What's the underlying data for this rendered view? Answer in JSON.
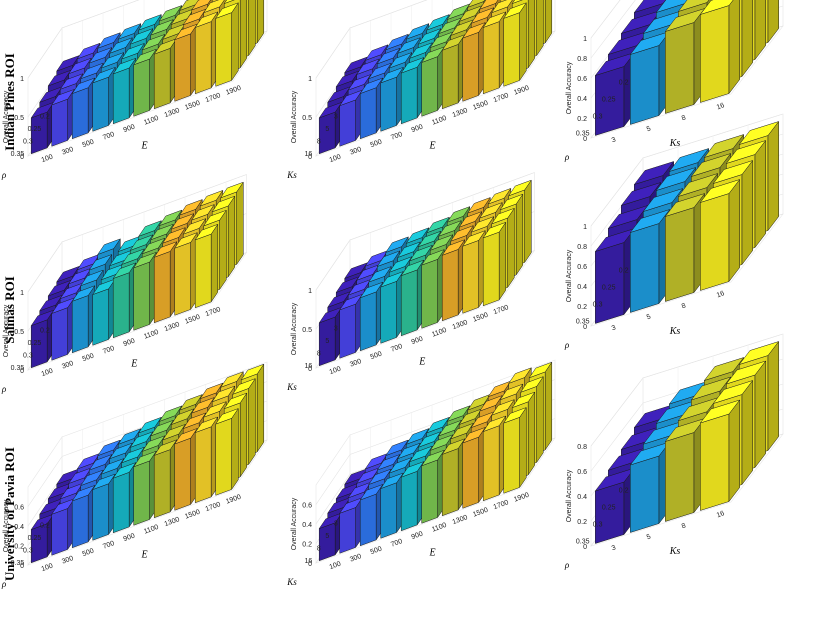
{
  "figure": {
    "rows": [
      "Indian Pines ROI",
      "Salinas ROI",
      "University of Pavia ROI"
    ],
    "zlabel": "Overall Accuracy",
    "palette": [
      "#3a1fae",
      "#4a46f0",
      "#2f78f2",
      "#1e9ee0",
      "#17bccd",
      "#2fc69b",
      "#7cca52",
      "#c3c42a",
      "#f0b02a",
      "#fbd62a",
      "#faf020"
    ]
  },
  "chart_data": [
    {
      "id": "ip-rho-E",
      "type": "bar3d",
      "dataset": "Indian Pines ROI",
      "rows_var": "ρ",
      "rows": [
        "0.2",
        "0.25",
        "0.3",
        "0.35"
      ],
      "cols_var": "E",
      "cols": [
        "100",
        "300",
        "500",
        "700",
        "900",
        "1100",
        "1300",
        "1500",
        "1700",
        "1900"
      ],
      "zlim": [
        0,
        1
      ],
      "zticks": [
        "0",
        "0.5",
        "1"
      ],
      "values": [
        [
          0.58,
          0.64,
          0.68,
          0.7,
          0.72,
          0.74,
          0.78,
          0.88,
          0.94,
          0.95
        ],
        [
          0.55,
          0.61,
          0.65,
          0.68,
          0.7,
          0.72,
          0.76,
          0.85,
          0.91,
          0.93
        ],
        [
          0.5,
          0.57,
          0.61,
          0.65,
          0.67,
          0.69,
          0.73,
          0.82,
          0.88,
          0.9
        ],
        [
          0.46,
          0.53,
          0.58,
          0.62,
          0.64,
          0.66,
          0.7,
          0.79,
          0.85,
          0.87
        ]
      ]
    },
    {
      "id": "ip-ks-E",
      "type": "bar3d",
      "dataset": "Indian Pines ROI",
      "rows_var": "Ks",
      "rows": [
        "3",
        "5",
        "8",
        "16"
      ],
      "cols_var": "E",
      "cols": [
        "100",
        "300",
        "500",
        "700",
        "900",
        "1100",
        "1300",
        "1500",
        "1700",
        "1900"
      ],
      "zlim": [
        0,
        1
      ],
      "zticks": [
        "0",
        "0.5",
        "1"
      ],
      "values": [
        [
          0.56,
          0.62,
          0.66,
          0.7,
          0.72,
          0.76,
          0.82,
          0.88,
          0.92,
          0.94
        ],
        [
          0.54,
          0.6,
          0.64,
          0.68,
          0.7,
          0.74,
          0.8,
          0.86,
          0.9,
          0.92
        ],
        [
          0.5,
          0.56,
          0.61,
          0.65,
          0.68,
          0.72,
          0.78,
          0.84,
          0.88,
          0.9
        ],
        [
          0.46,
          0.52,
          0.58,
          0.62,
          0.65,
          0.69,
          0.75,
          0.81,
          0.85,
          0.87
        ]
      ]
    },
    {
      "id": "ip-rho-ks",
      "type": "bar3d",
      "dataset": "Indian Pines ROI",
      "rows_var": "ρ",
      "rows": [
        "0.2",
        "0.25",
        "0.3",
        "0.35"
      ],
      "cols_var": "Ks",
      "cols": [
        "3",
        "5",
        "8",
        "16"
      ],
      "zlim": [
        0,
        1
      ],
      "zticks": [
        "0",
        "0.2",
        "0.4",
        "0.6",
        "0.8",
        "1"
      ],
      "values": [
        [
          0.72,
          0.8,
          0.9,
          0.94
        ],
        [
          0.68,
          0.78,
          0.88,
          0.92
        ],
        [
          0.64,
          0.74,
          0.85,
          0.9
        ],
        [
          0.6,
          0.7,
          0.82,
          0.88
        ]
      ]
    },
    {
      "id": "sa-rho-E",
      "type": "bar3d",
      "dataset": "Salinas ROI",
      "rows_var": "ρ",
      "rows": [
        "0.2",
        "0.25",
        "0.3",
        "0.35"
      ],
      "cols_var": "E",
      "cols": [
        "100",
        "300",
        "500",
        "700",
        "900",
        "1100",
        "1300",
        "1500",
        "1700"
      ],
      "zlim": [
        0,
        1
      ],
      "zticks": [
        "0",
        "0.5",
        "1"
      ],
      "values": [
        [
          0.62,
          0.68,
          0.78,
          0.72,
          0.82,
          0.86,
          0.9,
          0.92,
          0.93
        ],
        [
          0.6,
          0.66,
          0.74,
          0.7,
          0.8,
          0.84,
          0.88,
          0.9,
          0.91
        ],
        [
          0.57,
          0.63,
          0.7,
          0.68,
          0.78,
          0.82,
          0.86,
          0.88,
          0.89
        ],
        [
          0.54,
          0.6,
          0.66,
          0.65,
          0.76,
          0.8,
          0.84,
          0.86,
          0.87
        ]
      ]
    },
    {
      "id": "sa-ks-E",
      "type": "bar3d",
      "dataset": "Salinas ROI",
      "rows_var": "Ks",
      "rows": [
        "3",
        "5",
        "8",
        "16"
      ],
      "cols_var": "E",
      "cols": [
        "100",
        "300",
        "500",
        "700",
        "900",
        "1100",
        "1300",
        "1500",
        "1700"
      ],
      "zlim": [
        0,
        1
      ],
      "zticks": [
        "0",
        "0.5",
        "1"
      ],
      "values": [
        [
          0.64,
          0.7,
          0.78,
          0.8,
          0.84,
          0.88,
          0.9,
          0.92,
          0.93
        ],
        [
          0.62,
          0.68,
          0.76,
          0.78,
          0.82,
          0.86,
          0.88,
          0.9,
          0.91
        ],
        [
          0.59,
          0.65,
          0.72,
          0.75,
          0.8,
          0.84,
          0.86,
          0.88,
          0.89
        ],
        [
          0.55,
          0.62,
          0.68,
          0.72,
          0.77,
          0.81,
          0.84,
          0.86,
          0.87
        ]
      ]
    },
    {
      "id": "sa-rho-ks",
      "type": "bar3d",
      "dataset": "Salinas ROI",
      "rows_var": "ρ",
      "rows": [
        "0.2",
        "0.25",
        "0.3",
        "0.35"
      ],
      "cols_var": "Ks",
      "cols": [
        "3",
        "5",
        "8",
        "16"
      ],
      "zlim": [
        0,
        1
      ],
      "zticks": [
        "0",
        "0.2",
        "0.4",
        "0.6",
        "0.8",
        "1"
      ],
      "values": [
        [
          0.88,
          0.9,
          0.93,
          0.95
        ],
        [
          0.84,
          0.88,
          0.91,
          0.93
        ],
        [
          0.78,
          0.84,
          0.88,
          0.9
        ],
        [
          0.72,
          0.8,
          0.85,
          0.88
        ]
      ]
    },
    {
      "id": "pu-rho-E",
      "type": "bar3d",
      "dataset": "University of Pavia ROI",
      "rows_var": "ρ",
      "rows": [
        "0.2",
        "0.25",
        "0.3",
        "0.35"
      ],
      "cols_var": "E",
      "cols": [
        "100",
        "300",
        "500",
        "700",
        "900",
        "1100",
        "1300",
        "1500",
        "1700",
        "1900"
      ],
      "zlim": [
        0,
        0.8
      ],
      "zticks": [
        "0",
        "0.2",
        "0.4",
        "0.6"
      ],
      "values": [
        [
          0.42,
          0.5,
          0.56,
          0.6,
          0.64,
          0.68,
          0.72,
          0.76,
          0.8,
          0.8
        ],
        [
          0.4,
          0.48,
          0.54,
          0.58,
          0.62,
          0.66,
          0.7,
          0.74,
          0.78,
          0.78
        ],
        [
          0.37,
          0.45,
          0.51,
          0.55,
          0.59,
          0.63,
          0.67,
          0.71,
          0.75,
          0.76
        ],
        [
          0.34,
          0.42,
          0.48,
          0.52,
          0.56,
          0.6,
          0.64,
          0.68,
          0.72,
          0.73
        ]
      ]
    },
    {
      "id": "pu-ks-E",
      "type": "bar3d",
      "dataset": "University of Pavia ROI",
      "rows_var": "Ks",
      "rows": [
        "3",
        "5",
        "8",
        "16"
      ],
      "cols_var": "E",
      "cols": [
        "100",
        "300",
        "500",
        "700",
        "900",
        "1100",
        "1300",
        "1500",
        "1700",
        "1900"
      ],
      "zlim": [
        0,
        0.8
      ],
      "zticks": [
        "0",
        "0.2",
        "0.4",
        "0.6"
      ],
      "values": [
        [
          0.4,
          0.48,
          0.54,
          0.58,
          0.62,
          0.66,
          0.7,
          0.76,
          0.82,
          0.8
        ],
        [
          0.38,
          0.46,
          0.52,
          0.56,
          0.6,
          0.64,
          0.68,
          0.74,
          0.78,
          0.78
        ],
        [
          0.36,
          0.44,
          0.5,
          0.54,
          0.58,
          0.62,
          0.66,
          0.7,
          0.75,
          0.75
        ],
        [
          0.33,
          0.41,
          0.47,
          0.51,
          0.55,
          0.59,
          0.63,
          0.67,
          0.71,
          0.72
        ]
      ]
    },
    {
      "id": "pu-rho-ks",
      "type": "bar3d",
      "dataset": "University of Pavia ROI",
      "rows_var": "ρ",
      "rows": [
        "0.2",
        "0.25",
        "0.3",
        "0.35"
      ],
      "cols_var": "Ks",
      "cols": [
        "3",
        "5",
        "8",
        "16"
      ],
      "zlim": [
        0,
        0.8
      ],
      "zticks": [
        "0",
        "0.2",
        "0.4",
        "0.6",
        "0.8"
      ],
      "values": [
        [
          0.52,
          0.62,
          0.72,
          0.76
        ],
        [
          0.48,
          0.6,
          0.7,
          0.74
        ],
        [
          0.45,
          0.57,
          0.67,
          0.72
        ],
        [
          0.42,
          0.54,
          0.64,
          0.7
        ]
      ]
    }
  ]
}
